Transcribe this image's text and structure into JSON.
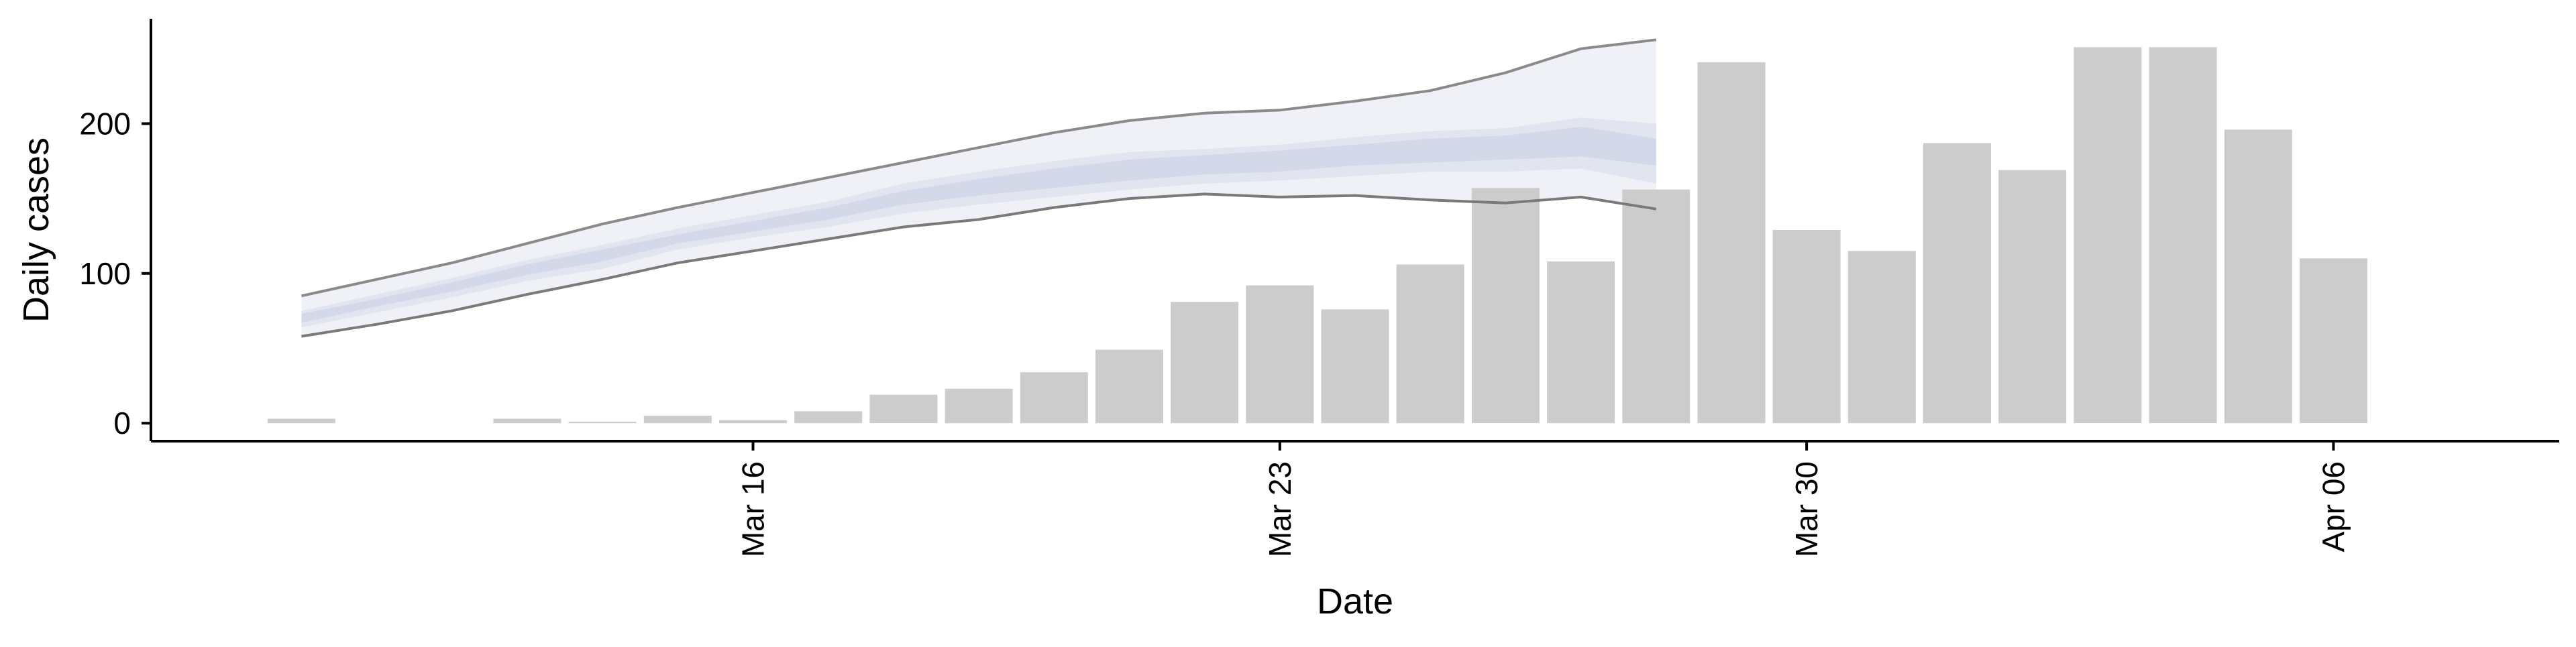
{
  "chart_data": {
    "type": "bar",
    "xlabel": "Date",
    "ylabel": "Daily cases",
    "ylim": [
      -12,
      270
    ],
    "y_ticks": [
      0,
      100,
      200
    ],
    "x_tick_labels": [
      {
        "date": "2020-03-16",
        "label": "Mar 16"
      },
      {
        "date": "2020-03-23",
        "label": "Mar 23"
      },
      {
        "date": "2020-03-30",
        "label": "Mar 30"
      },
      {
        "date": "2020-04-06",
        "label": "Apr 06"
      }
    ],
    "x_range": [
      "2020-03-08",
      "2020-04-09"
    ],
    "bars": [
      {
        "date": "2020-03-10",
        "value": 3
      },
      {
        "date": "2020-03-11",
        "value": 0
      },
      {
        "date": "2020-03-12",
        "value": 0
      },
      {
        "date": "2020-03-13",
        "value": 3
      },
      {
        "date": "2020-03-14",
        "value": 1
      },
      {
        "date": "2020-03-15",
        "value": 5
      },
      {
        "date": "2020-03-16",
        "value": 2
      },
      {
        "date": "2020-03-17",
        "value": 8
      },
      {
        "date": "2020-03-18",
        "value": 19
      },
      {
        "date": "2020-03-19",
        "value": 23
      },
      {
        "date": "2020-03-20",
        "value": 34
      },
      {
        "date": "2020-03-21",
        "value": 49
      },
      {
        "date": "2020-03-22",
        "value": 81
      },
      {
        "date": "2020-03-23",
        "value": 92
      },
      {
        "date": "2020-03-24",
        "value": 76
      },
      {
        "date": "2020-03-25",
        "value": 106
      },
      {
        "date": "2020-03-26",
        "value": 157
      },
      {
        "date": "2020-03-27",
        "value": 108
      },
      {
        "date": "2020-03-28",
        "value": 156
      },
      {
        "date": "2020-03-29",
        "value": 241
      },
      {
        "date": "2020-03-30",
        "value": 129
      },
      {
        "date": "2020-03-31",
        "value": 115
      },
      {
        "date": "2020-04-01",
        "value": 187
      },
      {
        "date": "2020-04-02",
        "value": 169
      },
      {
        "date": "2020-04-03",
        "value": 251
      },
      {
        "date": "2020-04-04",
        "value": 251
      },
      {
        "date": "2020-04-05",
        "value": 196
      },
      {
        "date": "2020-04-06",
        "value": 110
      }
    ],
    "estimate": {
      "dates": [
        "2020-03-10",
        "2020-03-11",
        "2020-03-12",
        "2020-03-13",
        "2020-03-14",
        "2020-03-15",
        "2020-03-16",
        "2020-03-17",
        "2020-03-18",
        "2020-03-19",
        "2020-03-20",
        "2020-03-21",
        "2020-03-22",
        "2020-03-23",
        "2020-03-24",
        "2020-03-25",
        "2020-03-26",
        "2020-03-27",
        "2020-03-28"
      ],
      "outer_lower": [
        58,
        66,
        75,
        86,
        96,
        107,
        115,
        123,
        131,
        136,
        144,
        150,
        153,
        151,
        152,
        149,
        147,
        151,
        143
      ],
      "outer_upper": [
        85,
        96,
        107,
        120,
        133,
        144,
        154,
        164,
        174,
        184,
        194,
        202,
        207,
        209,
        215,
        222,
        234,
        250,
        256
      ],
      "inner_lower": [
        64,
        74,
        84,
        95,
        103,
        116,
        124,
        131,
        140,
        146,
        151,
        156,
        160,
        162,
        165,
        168,
        168,
        170,
        160
      ],
      "inner_upper": [
        75,
        86,
        97,
        109,
        119,
        130,
        139,
        148,
        160,
        168,
        175,
        181,
        183,
        186,
        191,
        195,
        197,
        204,
        200
      ],
      "inner_mid_lower": [
        67,
        78,
        88,
        99,
        108,
        120,
        128,
        136,
        146,
        152,
        157,
        162,
        166,
        168,
        172,
        174,
        176,
        178,
        172
      ],
      "inner_mid_upper": [
        73,
        83,
        94,
        106,
        116,
        126,
        135,
        144,
        155,
        163,
        170,
        176,
        179,
        182,
        186,
        190,
        192,
        198,
        190
      ]
    },
    "colors": {
      "bar": "#cccccc",
      "band_outer": "#eef0f6",
      "band_inner": "#d6daea",
      "band_core": "#c4cae0",
      "line_outer_upper": "#8a8a8a",
      "line_outer_lower": "#7a7a7a",
      "axis": "#000000"
    },
    "grid": false,
    "legend": "none"
  }
}
